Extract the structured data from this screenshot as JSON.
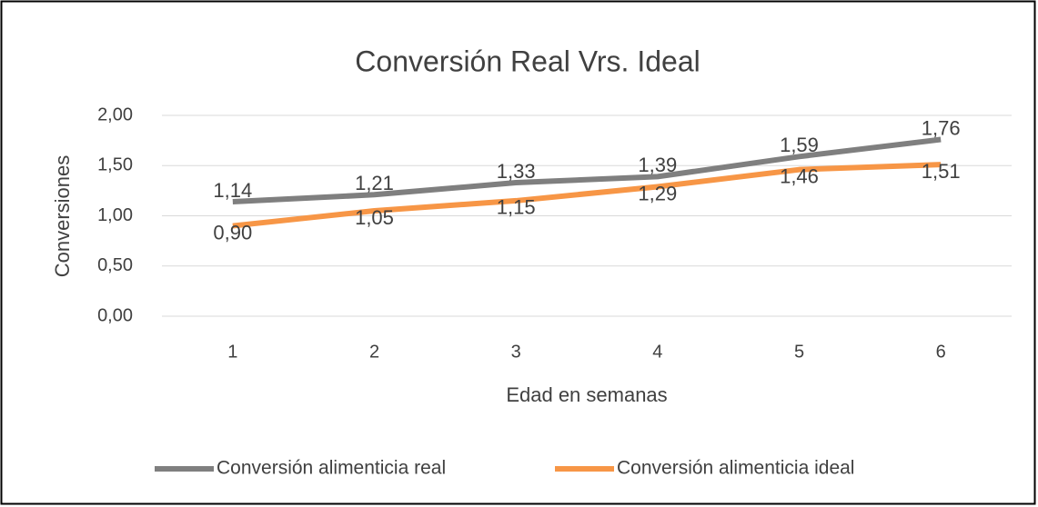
{
  "chart_data": {
    "type": "line",
    "title": "Conversión Real Vrs. Ideal",
    "x_label": "Edad en semanas",
    "y_label": "Conversiones",
    "categories": [
      "1",
      "2",
      "3",
      "4",
      "5",
      "6"
    ],
    "series": [
      {
        "name": "Conversión alimenticia real",
        "color": "#7f7f7f",
        "values": [
          1.14,
          1.21,
          1.33,
          1.39,
          1.59,
          1.76
        ],
        "value_labels": [
          "1,14",
          "1,21",
          "1,33",
          "1,39",
          "1,59",
          "1,76"
        ]
      },
      {
        "name": "Conversión alimenticia ideal",
        "color": "#f79646",
        "values": [
          0.9,
          1.05,
          1.15,
          1.29,
          1.46,
          1.51
        ],
        "value_labels": [
          "0,90",
          "1,05",
          "1,15",
          "1,29",
          "1,46",
          "1,51"
        ]
      }
    ],
    "ylim": [
      0,
      2
    ],
    "yticks": [
      {
        "value": 0,
        "label": "0,00"
      },
      {
        "value": 0.5,
        "label": "0,50"
      },
      {
        "value": 1,
        "label": "1,00"
      },
      {
        "value": 1.5,
        "label": "1,50"
      },
      {
        "value": 2,
        "label": "2,00"
      }
    ],
    "grid": true,
    "legend": "bottom"
  }
}
